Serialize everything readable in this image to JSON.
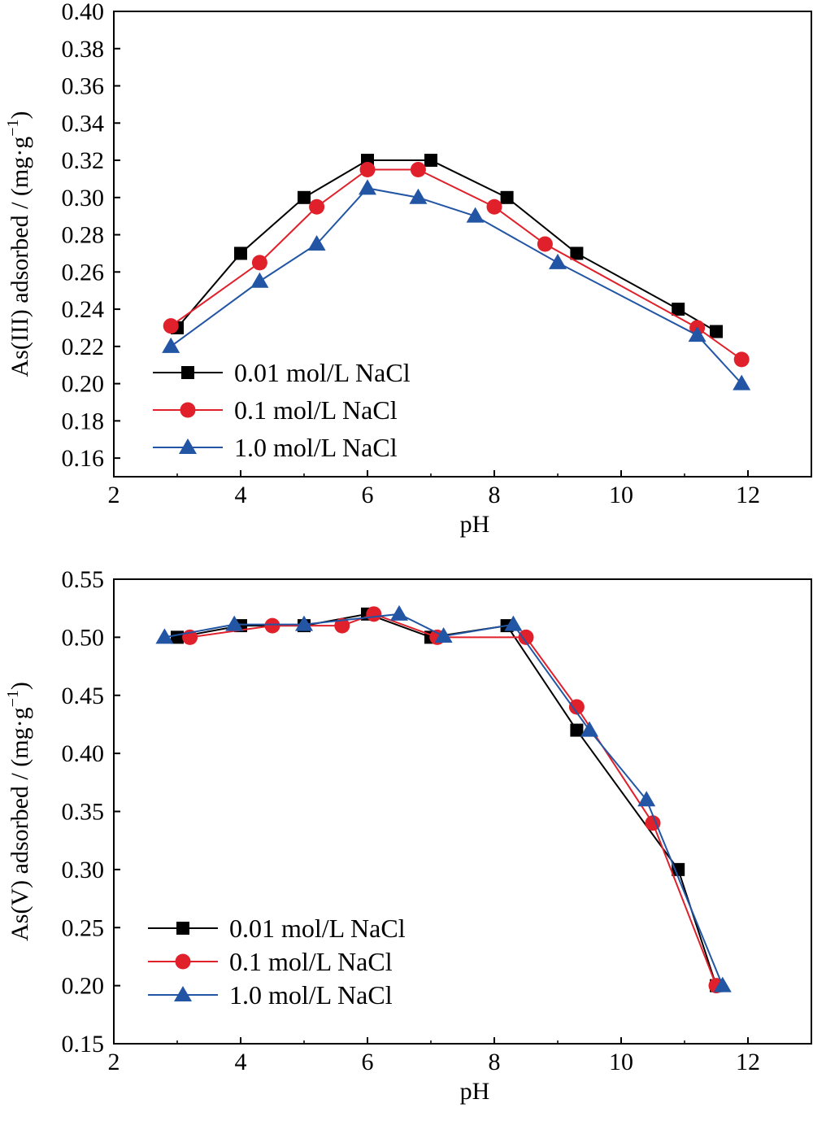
{
  "chart_data": [
    {
      "type": "line",
      "title": "",
      "xlabel": "pH",
      "ylabel": "As(III) adsorbed / (mg·g",
      "ylabel_sup": "−1",
      "ylabel_close": ")",
      "xlim": [
        2,
        13
      ],
      "ylim": [
        0.15,
        0.4
      ],
      "xticks": [
        2,
        4,
        6,
        8,
        10,
        12
      ],
      "yticks": [
        0.16,
        0.18,
        0.2,
        0.22,
        0.24,
        0.26,
        0.28,
        0.3,
        0.32,
        0.34,
        0.36,
        0.38,
        0.4
      ],
      "ytick_labels": [
        "0.16",
        "0.18",
        "0.20",
        "0.22",
        "0.24",
        "0.26",
        "0.28",
        "0.30",
        "0.32",
        "0.34",
        "0.36",
        "0.38",
        "0.40"
      ],
      "grid": false,
      "legend_position": "bottom-left",
      "series": [
        {
          "name": "0.01 mol/L NaCl",
          "color": "#000000",
          "marker": "square",
          "x": [
            3.0,
            4.0,
            5.0,
            6.0,
            7.0,
            8.2,
            9.3,
            10.9,
            11.5
          ],
          "y": [
            0.23,
            0.27,
            0.3,
            0.32,
            0.32,
            0.3,
            0.27,
            0.24,
            0.228
          ]
        },
        {
          "name": "0.1 mol/L NaCl",
          "color": "#e0202a",
          "marker": "circle",
          "x": [
            2.9,
            4.3,
            5.2,
            6.0,
            6.8,
            8.0,
            8.8,
            11.2,
            11.9
          ],
          "y": [
            0.231,
            0.265,
            0.295,
            0.315,
            0.315,
            0.295,
            0.275,
            0.23,
            0.213
          ]
        },
        {
          "name": "1.0 mol/L NaCl",
          "color": "#2255a4",
          "marker": "triangle",
          "x": [
            2.9,
            4.3,
            5.2,
            6.0,
            6.8,
            7.7,
            9.0,
            11.2,
            11.9
          ],
          "y": [
            0.22,
            0.255,
            0.275,
            0.305,
            0.3,
            0.29,
            0.265,
            0.226,
            0.2
          ]
        }
      ]
    },
    {
      "type": "line",
      "title": "",
      "xlabel": "pH",
      "ylabel": "As(V) adsorbed / (mg·g",
      "ylabel_sup": "−1",
      "ylabel_close": ")",
      "xlim": [
        2,
        13
      ],
      "ylim": [
        0.15,
        0.55
      ],
      "xticks": [
        2,
        4,
        6,
        8,
        10,
        12
      ],
      "yticks": [
        0.15,
        0.2,
        0.25,
        0.3,
        0.35,
        0.4,
        0.45,
        0.5,
        0.55
      ],
      "ytick_labels": [
        "0.15",
        "0.20",
        "0.25",
        "0.30",
        "0.35",
        "0.40",
        "0.45",
        "0.50",
        "0.55"
      ],
      "grid": false,
      "legend_position": "bottom-left",
      "series": [
        {
          "name": "0.01 mol/L NaCl",
          "color": "#000000",
          "marker": "square",
          "x": [
            3.0,
            4.0,
            5.0,
            6.0,
            7.0,
            8.2,
            9.3,
            10.9,
            11.5
          ],
          "y": [
            0.5,
            0.51,
            0.51,
            0.52,
            0.5,
            0.51,
            0.42,
            0.3,
            0.2
          ]
        },
        {
          "name": "0.1 mol/L NaCl",
          "color": "#e0202a",
          "marker": "circle",
          "x": [
            3.2,
            4.5,
            5.6,
            6.1,
            7.1,
            8.5,
            9.3,
            10.5,
            11.5
          ],
          "y": [
            0.5,
            0.51,
            0.51,
            0.52,
            0.5,
            0.5,
            0.44,
            0.34,
            0.2
          ]
        },
        {
          "name": "1.0 mol/L NaCl",
          "color": "#2255a4",
          "marker": "triangle",
          "x": [
            2.8,
            3.9,
            5.0,
            6.5,
            7.2,
            8.3,
            9.5,
            10.4,
            11.6
          ],
          "y": [
            0.5,
            0.511,
            0.511,
            0.52,
            0.501,
            0.511,
            0.42,
            0.36,
            0.2
          ]
        }
      ]
    }
  ]
}
